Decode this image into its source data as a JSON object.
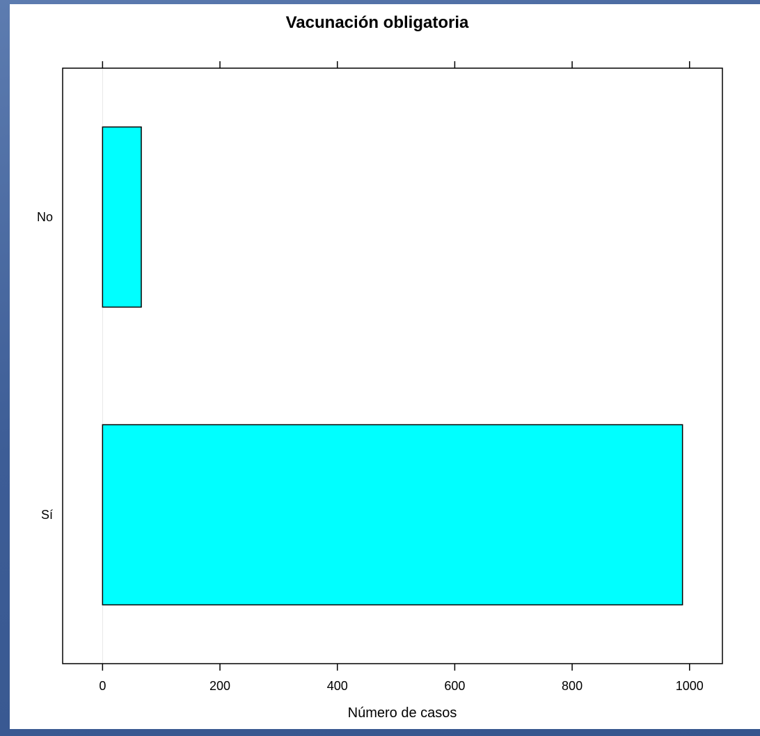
{
  "chart_data": {
    "type": "bar",
    "orientation": "horizontal",
    "title": "Vacunación obligatoria",
    "xlabel": "Número de casos",
    "ylabel": "",
    "categories": [
      "No",
      "Sí"
    ],
    "values": [
      66,
      988
    ],
    "xlim": [
      -68,
      1056
    ],
    "xticks": [
      0,
      200,
      400,
      600,
      800,
      1000
    ],
    "grid": false,
    "legend": "none",
    "colors": {
      "bar_fill": "#00ffff",
      "bar_stroke": "#000000",
      "zero_line": "#e6e6e6"
    }
  }
}
